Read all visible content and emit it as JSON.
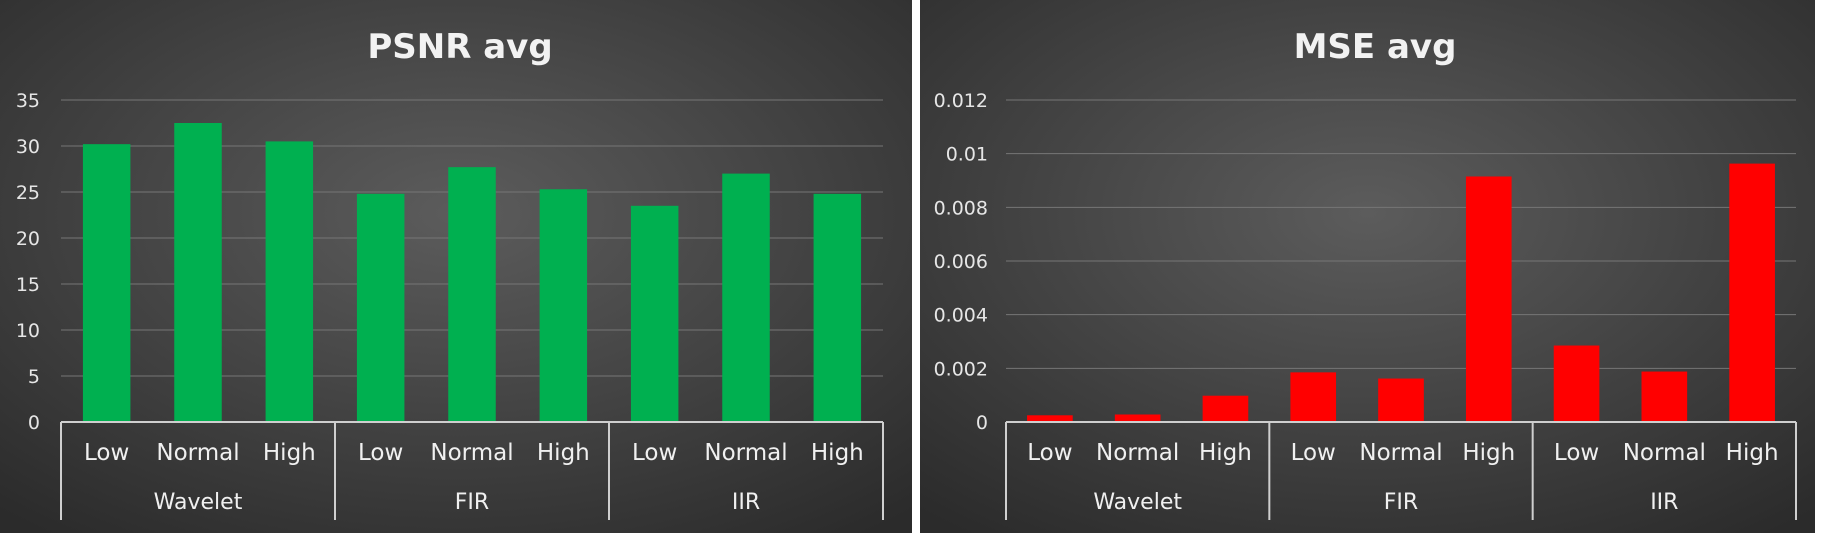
{
  "chart_data": [
    {
      "type": "bar",
      "title": "PSNR avg",
      "groups": [
        "Wavelet",
        "FIR",
        "IIR"
      ],
      "categories": [
        "Low",
        "Normal",
        "High",
        "Low",
        "Normal",
        "High",
        "Low",
        "Normal",
        "High"
      ],
      "values": [
        30.2,
        32.5,
        30.5,
        24.8,
        27.7,
        25.3,
        23.5,
        27.0,
        24.8
      ],
      "ylim": [
        0,
        35
      ],
      "yticks": [
        "0",
        "5",
        "10",
        "15",
        "20",
        "25",
        "30",
        "35"
      ],
      "ytick_values": [
        0,
        5,
        10,
        15,
        20,
        25,
        30,
        35
      ],
      "bar_color": "#00b050",
      "grid": true
    },
    {
      "type": "bar",
      "title": "MSE avg",
      "groups": [
        "Wavelet",
        "FIR",
        "IIR"
      ],
      "categories": [
        "Low",
        "Normal",
        "High",
        "Low",
        "Normal",
        "High",
        "Low",
        "Normal",
        "High"
      ],
      "values": [
        0.00025,
        0.00028,
        0.00098,
        0.00185,
        0.00162,
        0.00915,
        0.00285,
        0.00188,
        0.00963
      ],
      "ylim": [
        0,
        0.012
      ],
      "yticks": [
        "0",
        "0.002",
        "0.004",
        "0.006",
        "0.008",
        "0.01",
        "0.012"
      ],
      "ytick_values": [
        0,
        0.002,
        0.004,
        0.006,
        0.008,
        0.01,
        0.012
      ],
      "bar_color": "#ff0000",
      "grid": true
    }
  ]
}
